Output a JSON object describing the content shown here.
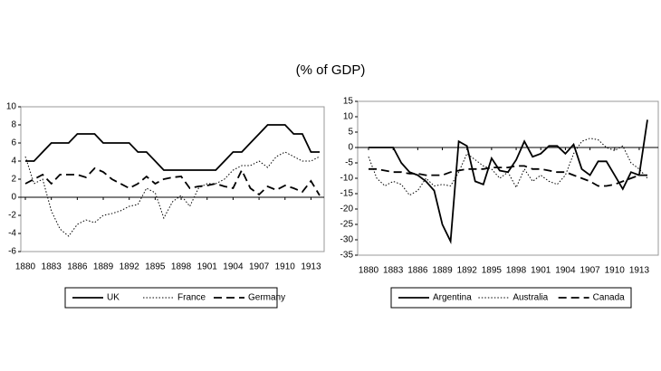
{
  "title": "(% of GDP)",
  "chart_data": [
    {
      "type": "line",
      "x": [
        1880,
        1881,
        1882,
        1883,
        1884,
        1885,
        1886,
        1887,
        1888,
        1889,
        1890,
        1891,
        1892,
        1893,
        1894,
        1895,
        1896,
        1897,
        1898,
        1899,
        1900,
        1901,
        1902,
        1903,
        1904,
        1905,
        1906,
        1907,
        1908,
        1909,
        1910,
        1911,
        1912,
        1913,
        1914
      ],
      "xlim": [
        1880,
        1914
      ],
      "xticks": [
        1880,
        1883,
        1886,
        1889,
        1892,
        1895,
        1898,
        1901,
        1904,
        1907,
        1910,
        1913
      ],
      "ylim": [
        -6,
        10
      ],
      "yticks": [
        -6,
        -4,
        -2,
        0,
        2,
        4,
        6,
        8,
        10
      ],
      "series": [
        {
          "name": "UK",
          "color": "#000000",
          "line_style": "solid",
          "values": [
            4,
            4,
            5,
            6,
            6,
            6,
            7,
            7,
            7,
            6,
            6,
            6,
            6,
            5,
            5,
            4,
            3,
            3,
            3,
            3,
            3,
            3,
            3,
            4,
            5,
            5,
            6,
            7,
            8,
            8,
            8,
            7,
            7,
            5,
            5
          ]
        },
        {
          "name": "France",
          "color": "#000000",
          "line_style": "dotted",
          "values": [
            4.5,
            1.5,
            2,
            -1.5,
            -3.5,
            -4.3,
            -3,
            -2.5,
            -2.8,
            -2,
            -1.8,
            -1.5,
            -1,
            -0.8,
            1,
            0.5,
            -2.3,
            -0.5,
            0.2,
            -1,
            1,
            1.5,
            1.5,
            2,
            3,
            3.5,
            3.5,
            4,
            3.3,
            4.5,
            5,
            4.5,
            4,
            4,
            4.5
          ]
        },
        {
          "name": "Germany",
          "color": "#000000",
          "line_style": "dashed",
          "values": [
            1.5,
            2,
            2.5,
            1.5,
            2.5,
            2.5,
            2.5,
            2.2,
            3.2,
            2.8,
            2,
            1.5,
            1,
            1.5,
            2.3,
            1.5,
            2,
            2.2,
            2.3,
            1,
            1.2,
            1.3,
            1.5,
            1.2,
            1,
            3,
            1,
            0.3,
            1.2,
            0.8,
            1.3,
            1,
            0.6,
            1.8,
            0.2
          ]
        }
      ]
    },
    {
      "type": "line",
      "x": [
        1880,
        1881,
        1882,
        1883,
        1884,
        1885,
        1886,
        1887,
        1888,
        1889,
        1890,
        1891,
        1892,
        1893,
        1894,
        1895,
        1896,
        1897,
        1898,
        1899,
        1900,
        1901,
        1902,
        1903,
        1904,
        1905,
        1906,
        1907,
        1908,
        1909,
        1910,
        1911,
        1912,
        1913,
        1914
      ],
      "xlim": [
        1880,
        1914
      ],
      "xticks": [
        1880,
        1883,
        1886,
        1889,
        1892,
        1895,
        1898,
        1901,
        1904,
        1907,
        1910,
        1913
      ],
      "ylim": [
        -35,
        15
      ],
      "yticks": [
        -35,
        -30,
        -25,
        -20,
        -15,
        -10,
        -5,
        0,
        5,
        10,
        15
      ],
      "series": [
        {
          "name": "Argentina",
          "color": "#000000",
          "line_style": "solid",
          "values": [
            0,
            0,
            0,
            0,
            -5,
            -8,
            -9,
            -11,
            -14,
            -25,
            -30.5,
            2,
            0.5,
            -11,
            -12,
            -3.5,
            -7.5,
            -8,
            -4,
            2,
            -3,
            -2,
            0.5,
            0.5,
            -2,
            1,
            -7,
            -9,
            -4.5,
            -4.5,
            -9,
            -13.5,
            -8,
            -9,
            9
          ]
        },
        {
          "name": "Australia",
          "color": "#000000",
          "line_style": "dotted",
          "values": [
            -3,
            -10,
            -12.5,
            -11,
            -12,
            -15.5,
            -14,
            -10,
            -12.5,
            -12,
            -12.5,
            -8,
            -2,
            -4,
            -6,
            -7,
            -10,
            -8,
            -13,
            -7,
            -11,
            -9,
            -11,
            -12,
            -9,
            -2,
            2,
            3,
            2.5,
            0,
            -1,
            0.5,
            -5,
            -7,
            -10
          ]
        },
        {
          "name": "Canada",
          "color": "#000000",
          "line_style": "dashed",
          "values": [
            -7,
            -7,
            -7.5,
            -8,
            -8,
            -8.5,
            -8.5,
            -9,
            -9,
            -9,
            -8,
            -7.5,
            -7,
            -7,
            -7,
            -6.5,
            -6.5,
            -6.5,
            -6,
            -6,
            -7,
            -7,
            -7.5,
            -8,
            -8,
            -9,
            -10,
            -11,
            -12.5,
            -12.5,
            -12,
            -11,
            -10,
            -9,
            -9
          ]
        }
      ]
    }
  ]
}
